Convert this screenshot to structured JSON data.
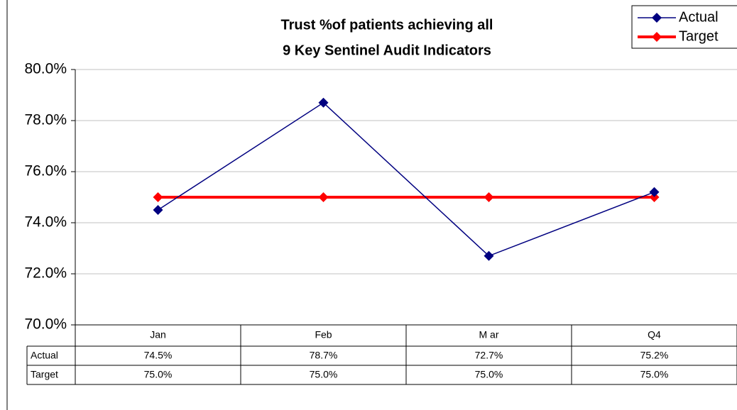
{
  "chart_data": {
    "type": "line",
    "title": [
      "Trust %of patients achieving all",
      "9 Key Sentinel Audit Indicators"
    ],
    "categories": [
      "Jan",
      "Feb",
      "M ar",
      "Q4"
    ],
    "series": [
      {
        "name": "Actual",
        "color": "#000080",
        "values": [
          74.5,
          78.7,
          72.7,
          75.2
        ],
        "value_labels": [
          "74.5%",
          "78.7%",
          "72.7%",
          "75.2%"
        ]
      },
      {
        "name": "Target",
        "color": "#ff0000",
        "values": [
          75.0,
          75.0,
          75.0,
          75.0
        ],
        "value_labels": [
          "75.0%",
          "75.0%",
          "75.0%",
          "75.0%"
        ]
      }
    ],
    "ylim": [
      70,
      80
    ],
    "yticks": [
      {
        "value": 70,
        "label": "70.0%"
      },
      {
        "value": 72,
        "label": "72.0%"
      },
      {
        "value": 74,
        "label": "74.0%"
      },
      {
        "value": 76,
        "label": "76.0%"
      },
      {
        "value": 78,
        "label": "78.0%"
      },
      {
        "value": 80,
        "label": "80.0%"
      }
    ],
    "grid": true,
    "legend": "top-right"
  }
}
